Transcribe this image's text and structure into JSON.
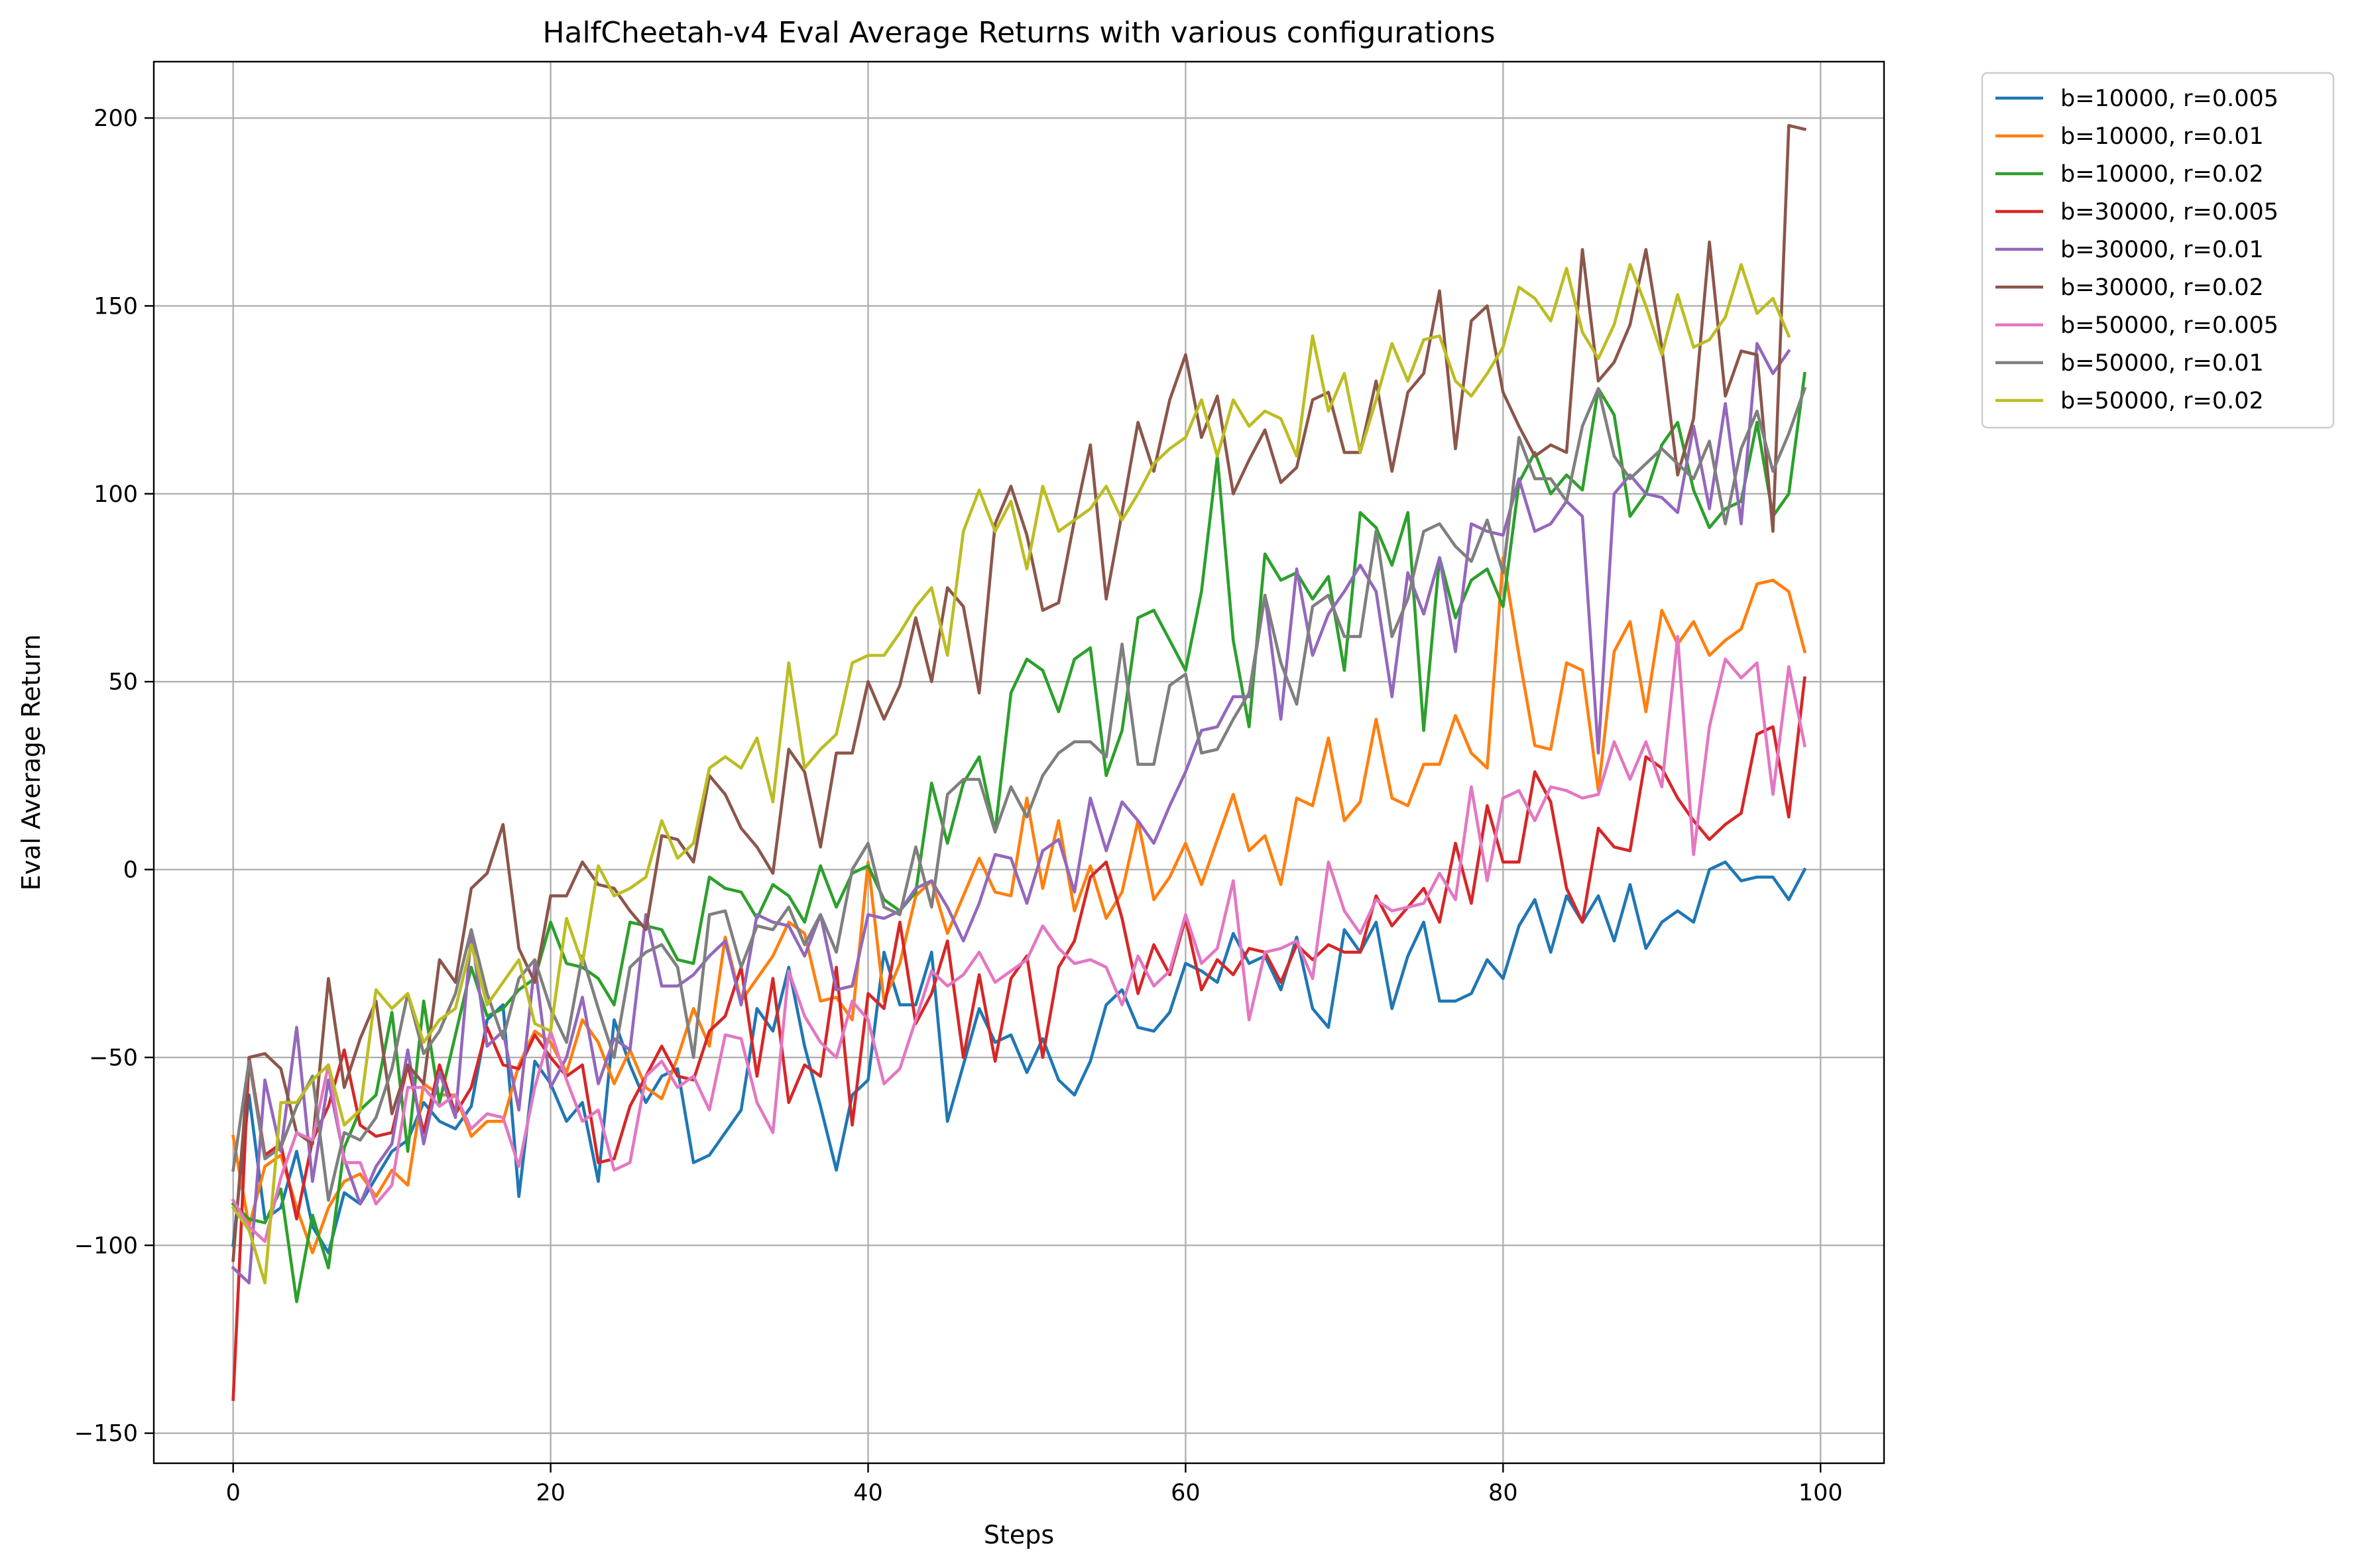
{
  "chart_data": {
    "type": "line",
    "title": "HalfCheetah-v4 Eval Average Returns with various configurations",
    "xlabel": "Steps",
    "ylabel": "Eval Average Return",
    "xlim": [
      -5,
      104
    ],
    "ylim": [
      -158,
      215
    ],
    "xticks": [
      0,
      20,
      40,
      60,
      80,
      100
    ],
    "yticks": [
      -150,
      -100,
      -50,
      0,
      50,
      100,
      150,
      200
    ],
    "grid": true,
    "legend_position": "outside-top-right",
    "series": [
      {
        "name": "b=10000, r=0.005",
        "color": "#1f77b4",
        "values": [
          -100,
          -60,
          -93,
          -90,
          -75,
          -95,
          -102,
          -86,
          -89,
          -82,
          -75,
          -72,
          -62,
          -67,
          -69,
          -63,
          -40,
          -36,
          -87,
          -51,
          -57,
          -67,
          -62,
          -83,
          -40,
          -52,
          -62,
          -55,
          -53,
          -78,
          -76,
          -70,
          -64,
          -37,
          -43,
          -26,
          -47,
          -63,
          -80,
          -60,
          -56,
          -22,
          -36,
          -36,
          -22,
          -67,
          -52,
          -37,
          -46,
          -44,
          -54,
          -45,
          -56,
          -60,
          -51,
          -36,
          -32,
          -42,
          -43,
          -38,
          -25,
          -27,
          -30,
          -17,
          -25,
          -23,
          -32,
          -18,
          -37,
          -42,
          -16,
          -22,
          -14,
          -37,
          -23,
          -14,
          -35,
          -35,
          -33,
          -24,
          -29,
          -15,
          -8,
          -22,
          -7,
          -14,
          -7,
          -19,
          -4,
          -21,
          -14,
          -11,
          -14,
          0,
          2,
          -3,
          -2,
          -2,
          -8,
          0
        ]
      },
      {
        "name": "b=10000, r=0.01",
        "color": "#ff7f0e",
        "values": [
          -71,
          -95,
          -79,
          -76,
          -90,
          -102,
          -90,
          -83,
          -81,
          -87,
          -80,
          -84,
          -57,
          -60,
          -60,
          -71,
          -67,
          -67,
          -52,
          -43,
          -46,
          -54,
          -40,
          -46,
          -57,
          -48,
          -58,
          -61,
          -50,
          -37,
          -47,
          -18,
          -35,
          -29,
          -23,
          -14,
          -17,
          -35,
          -34,
          -40,
          2,
          -35,
          -25,
          -7,
          -3,
          -17,
          -7,
          3,
          -6,
          -7,
          19,
          -5,
          13,
          -11,
          1,
          -13,
          -6,
          13,
          -8,
          -2,
          7,
          -4,
          8,
          20,
          5,
          9,
          -4,
          19,
          17,
          35,
          13,
          18,
          40,
          19,
          17,
          28,
          28,
          41,
          31,
          27,
          83,
          57,
          33,
          32,
          55,
          53,
          21,
          58,
          66,
          42,
          69,
          60,
          66,
          57,
          61,
          64,
          76,
          77,
          74,
          58
        ]
      },
      {
        "name": "b=10000, r=0.02",
        "color": "#2ca02c",
        "values": [
          -89,
          -93,
          -94,
          -85,
          -115,
          -92,
          -106,
          -74,
          -64,
          -60,
          -38,
          -75,
          -35,
          -62,
          -44,
          -26,
          -39,
          -37,
          -32,
          -29,
          -14,
          -25,
          -26,
          -29,
          -36,
          -14,
          -15,
          -16,
          -24,
          -25,
          -2,
          -5,
          -6,
          -13,
          -4,
          -7,
          -14,
          1,
          -10,
          -1,
          1,
          -8,
          -11,
          -6,
          23,
          7,
          23,
          30,
          10,
          47,
          56,
          53,
          42,
          56,
          59,
          25,
          37,
          67,
          69,
          61,
          53,
          74,
          110,
          61,
          38,
          84,
          77,
          79,
          72,
          78,
          53,
          95,
          91,
          81,
          95,
          37,
          83,
          67,
          77,
          80,
          70,
          103,
          111,
          100,
          105,
          101,
          128,
          121,
          94,
          100,
          113,
          119,
          101,
          91,
          96,
          98,
          119,
          94,
          100,
          132
        ]
      },
      {
        "name": "b=30000, r=0.005",
        "color": "#d62728",
        "values": [
          -141,
          -50,
          -76,
          -73,
          -93,
          -72,
          -63,
          -48,
          -68,
          -71,
          -70,
          -52,
          -70,
          -52,
          -65,
          -58,
          -42,
          -52,
          -53,
          -44,
          -50,
          -55,
          -52,
          -78,
          -77,
          -63,
          -55,
          -47,
          -55,
          -56,
          -43,
          -39,
          -26,
          -55,
          -29,
          -62,
          -52,
          -55,
          -26,
          -68,
          -33,
          -37,
          -14,
          -41,
          -33,
          -19,
          -50,
          -28,
          -51,
          -29,
          -23,
          -50,
          -26,
          -19,
          -2,
          2,
          -13,
          -33,
          -20,
          -28,
          -13,
          -32,
          -24,
          -28,
          -21,
          -22,
          -30,
          -20,
          -24,
          -20,
          -22,
          -22,
          -7,
          -15,
          -10,
          -5,
          -14,
          7,
          -9,
          17,
          2,
          2,
          26,
          18,
          -5,
          -14,
          11,
          6,
          5,
          30,
          27,
          19,
          13,
          8,
          12,
          15,
          36,
          38,
          14,
          51
        ]
      },
      {
        "name": "b=30000, r=0.01",
        "color": "#9467bd",
        "values": [
          -106,
          -110,
          -56,
          -75,
          -42,
          -83,
          -56,
          -77,
          -89,
          -79,
          -73,
          -48,
          -73,
          -54,
          -66,
          -17,
          -47,
          -43,
          -64,
          -25,
          -58,
          -50,
          -34,
          -57,
          -45,
          -48,
          -12,
          -31,
          -31,
          -28,
          -23,
          -19,
          -36,
          -12,
          -14,
          -15,
          -23,
          -12,
          -32,
          -31,
          -12,
          -13,
          -11,
          -5,
          -3,
          -10,
          -19,
          -9,
          4,
          3,
          -9,
          5,
          8,
          -6,
          19,
          5,
          18,
          13,
          7,
          17,
          26,
          37,
          38,
          46,
          46,
          73,
          40,
          80,
          57,
          68,
          74,
          81,
          74,
          46,
          79,
          68,
          83,
          58,
          92,
          90,
          89,
          104,
          90,
          92,
          98,
          94,
          31,
          100,
          105,
          100,
          99,
          95,
          118,
          96,
          124,
          92,
          140,
          132,
          138
        ]
      },
      {
        "name": "b=30000, r=0.02",
        "color": "#8c564b",
        "values": [
          -104,
          -50,
          -49,
          -53,
          -70,
          -73,
          -29,
          -58,
          -45,
          -35,
          -65,
          -52,
          -57,
          -24,
          -30,
          -5,
          -1,
          12,
          -21,
          -30,
          -7,
          -7,
          2,
          -4,
          -5,
          -11,
          -16,
          9,
          8,
          2,
          25,
          20,
          11,
          6,
          -1,
          32,
          26,
          6,
          31,
          31,
          50,
          40,
          49,
          67,
          50,
          75,
          70,
          47,
          92,
          102,
          89,
          69,
          71,
          93,
          113,
          72,
          95,
          119,
          106,
          125,
          137,
          115,
          126,
          100,
          109,
          117,
          103,
          107,
          125,
          127,
          111,
          111,
          130,
          106,
          127,
          132,
          154,
          112,
          146,
          150,
          127,
          118,
          110,
          113,
          111,
          165,
          130,
          135,
          145,
          165,
          139,
          105,
          120,
          167,
          126,
          138,
          137,
          90,
          198,
          197
        ]
      },
      {
        "name": "b=50000, r=0.005",
        "color": "#e377c2",
        "values": [
          -88,
          -95,
          -99,
          -82,
          -70,
          -72,
          -52,
          -78,
          -78,
          -89,
          -84,
          -58,
          -58,
          -63,
          -60,
          -69,
          -65,
          -66,
          -79,
          -58,
          -43,
          -56,
          -67,
          -64,
          -80,
          -78,
          -55,
          -51,
          -58,
          -55,
          -64,
          -44,
          -45,
          -62,
          -70,
          -27,
          -39,
          -46,
          -50,
          -35,
          -40,
          -57,
          -53,
          -40,
          -27,
          -31,
          -28,
          -22,
          -30,
          -27,
          -24,
          -15,
          -21,
          -25,
          -24,
          -26,
          -36,
          -23,
          -31,
          -27,
          -12,
          -25,
          -21,
          -3,
          -40,
          -22,
          -21,
          -19,
          -29,
          2,
          -11,
          -17,
          -8,
          -11,
          -10,
          -9,
          -1,
          -8,
          22,
          -3,
          19,
          21,
          13,
          22,
          21,
          19,
          20,
          34,
          24,
          34,
          22,
          62,
          4,
          38,
          56,
          51,
          55,
          20,
          54,
          33
        ]
      },
      {
        "name": "b=50000, r=0.01",
        "color": "#7f7f7f",
        "values": [
          -80,
          -51,
          -77,
          -74,
          -63,
          -55,
          -88,
          -70,
          -72,
          -66,
          -53,
          -33,
          -49,
          -43,
          -33,
          -16,
          -33,
          -45,
          -29,
          -24,
          -37,
          -46,
          -23,
          -37,
          -50,
          -26,
          -22,
          -20,
          -26,
          -50,
          -12,
          -11,
          -26,
          -15,
          -16,
          -10,
          -20,
          -12,
          -22,
          0,
          7,
          -10,
          -12,
          6,
          -10,
          20,
          24,
          24,
          10,
          22,
          14,
          25,
          31,
          34,
          34,
          30,
          60,
          28,
          28,
          49,
          52,
          31,
          32,
          40,
          47,
          73,
          55,
          44,
          70,
          73,
          62,
          62,
          90,
          62,
          72,
          90,
          92,
          86,
          82,
          93,
          79,
          115,
          104,
          104,
          98,
          118,
          128,
          110,
          104,
          108,
          112,
          108,
          104,
          114,
          92,
          112,
          122,
          106,
          116,
          128
        ]
      },
      {
        "name": "b=50000, r=0.02",
        "color": "#bcbd22",
        "values": [
          -90,
          -96,
          -110,
          -62,
          -62,
          -56,
          -52,
          -68,
          -64,
          -32,
          -37,
          -33,
          -46,
          -40,
          -37,
          -20,
          -36,
          -30,
          -24,
          -41,
          -43,
          -13,
          -25,
          1,
          -7,
          -5,
          -2,
          13,
          3,
          7,
          27,
          30,
          27,
          35,
          18,
          55,
          27,
          32,
          36,
          55,
          57,
          57,
          63,
          70,
          75,
          57,
          90,
          101,
          90,
          98,
          80,
          102,
          90,
          93,
          96,
          102,
          93,
          100,
          108,
          112,
          115,
          125,
          110,
          125,
          118,
          122,
          120,
          110,
          142,
          122,
          132,
          111,
          125,
          140,
          130,
          141,
          142,
          130,
          126,
          132,
          139,
          155,
          152,
          146,
          160,
          143,
          136,
          145,
          161,
          150,
          137,
          153,
          139,
          141,
          147,
          161,
          148,
          152,
          142
        ]
      }
    ]
  }
}
